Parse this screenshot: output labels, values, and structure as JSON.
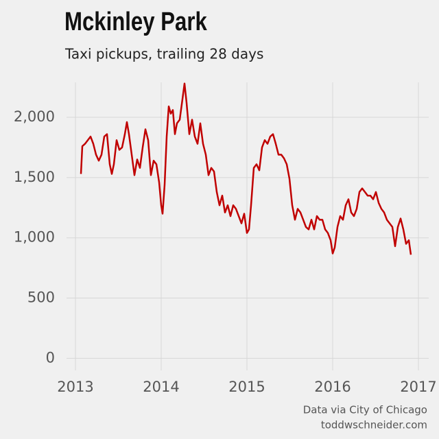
{
  "chart_data": {
    "type": "line",
    "title": "Mckinley Park",
    "subtitle": "Taxi pickups, trailing 28 days",
    "source": [
      "Data via City of Chicago",
      "toddwschneider.com"
    ],
    "color": "#c00000",
    "grid": true,
    "xlim": [
      2012.896,
      2017.12
    ],
    "xticks": [
      2013,
      2014,
      2015,
      2016,
      2017
    ],
    "ylim": [
      -100,
      2290
    ],
    "yticks": [
      0,
      500,
      {
        "value": 1000,
        "label": "1,000"
      },
      {
        "value": 1500,
        "label": "1,500"
      },
      {
        "value": 2000,
        "label": "2,000"
      }
    ],
    "x": [
      2013.064,
      2013.08,
      2013.112,
      2013.144,
      2013.176,
      2013.208,
      2013.24,
      2013.272,
      2013.304,
      2013.336,
      2013.368,
      2013.4,
      2013.424,
      2013.448,
      2013.48,
      2013.512,
      2013.544,
      2013.576,
      2013.6,
      2013.624,
      2013.656,
      2013.688,
      2013.72,
      2013.752,
      2013.784,
      2013.816,
      2013.848,
      2013.88,
      2013.912,
      2013.944,
      2013.976,
      2014.0,
      2014.016,
      2014.04,
      2014.064,
      2014.088,
      2014.112,
      2014.136,
      2014.16,
      2014.184,
      2014.216,
      2014.248,
      2014.272,
      2014.296,
      2014.328,
      2014.36,
      2014.392,
      2014.424,
      2014.456,
      2014.488,
      2014.52,
      2014.552,
      2014.584,
      2014.616,
      2014.648,
      2014.68,
      2014.712,
      2014.744,
      2014.776,
      2014.808,
      2014.84,
      2014.872,
      2014.904,
      2014.936,
      2014.968,
      2015.0,
      2015.024,
      2015.048,
      2015.08,
      2015.112,
      2015.144,
      2015.176,
      2015.208,
      2015.24,
      2015.272,
      2015.304,
      2015.336,
      2015.368,
      2015.4,
      2015.432,
      2015.464,
      2015.496,
      2015.528,
      2015.56,
      2015.592,
      2015.624,
      2015.656,
      2015.688,
      2015.72,
      2015.752,
      2015.784,
      2015.816,
      2015.848,
      2015.88,
      2015.912,
      2015.944,
      2015.976,
      2016.0,
      2016.024,
      2016.056,
      2016.088,
      2016.12,
      2016.152,
      2016.184,
      2016.216,
      2016.248,
      2016.28,
      2016.312,
      2016.344,
      2016.376,
      2016.408,
      2016.44,
      2016.472,
      2016.504,
      2016.536,
      2016.568,
      2016.6,
      2016.632,
      2016.664,
      2016.696,
      2016.728,
      2016.76,
      2016.792,
      2016.824,
      2016.856,
      2016.888,
      2016.912
    ],
    "values": [
      1530,
      1760,
      1780,
      1810,
      1840,
      1780,
      1690,
      1640,
      1690,
      1840,
      1860,
      1610,
      1530,
      1610,
      1810,
      1730,
      1750,
      1860,
      1960,
      1860,
      1690,
      1520,
      1650,
      1580,
      1750,
      1900,
      1810,
      1520,
      1640,
      1610,
      1460,
      1270,
      1200,
      1440,
      1840,
      2090,
      2030,
      2060,
      1860,
      1950,
      1980,
      2150,
      2280,
      2120,
      1860,
      1980,
      1840,
      1780,
      1950,
      1780,
      1690,
      1520,
      1580,
      1550,
      1380,
      1270,
      1350,
      1210,
      1270,
      1180,
      1270,
      1240,
      1180,
      1120,
      1200,
      1040,
      1070,
      1270,
      1580,
      1610,
      1560,
      1750,
      1810,
      1780,
      1840,
      1860,
      1780,
      1690,
      1690,
      1660,
      1610,
      1490,
      1270,
      1150,
      1240,
      1210,
      1150,
      1090,
      1070,
      1150,
      1070,
      1180,
      1150,
      1150,
      1070,
      1040,
      980,
      870,
      920,
      1090,
      1180,
      1150,
      1270,
      1320,
      1210,
      1180,
      1240,
      1380,
      1410,
      1380,
      1350,
      1350,
      1320,
      1380,
      1290,
      1240,
      1210,
      1150,
      1120,
      1090,
      930,
      1090,
      1160,
      1070,
      950,
      980,
      860
    ]
  }
}
